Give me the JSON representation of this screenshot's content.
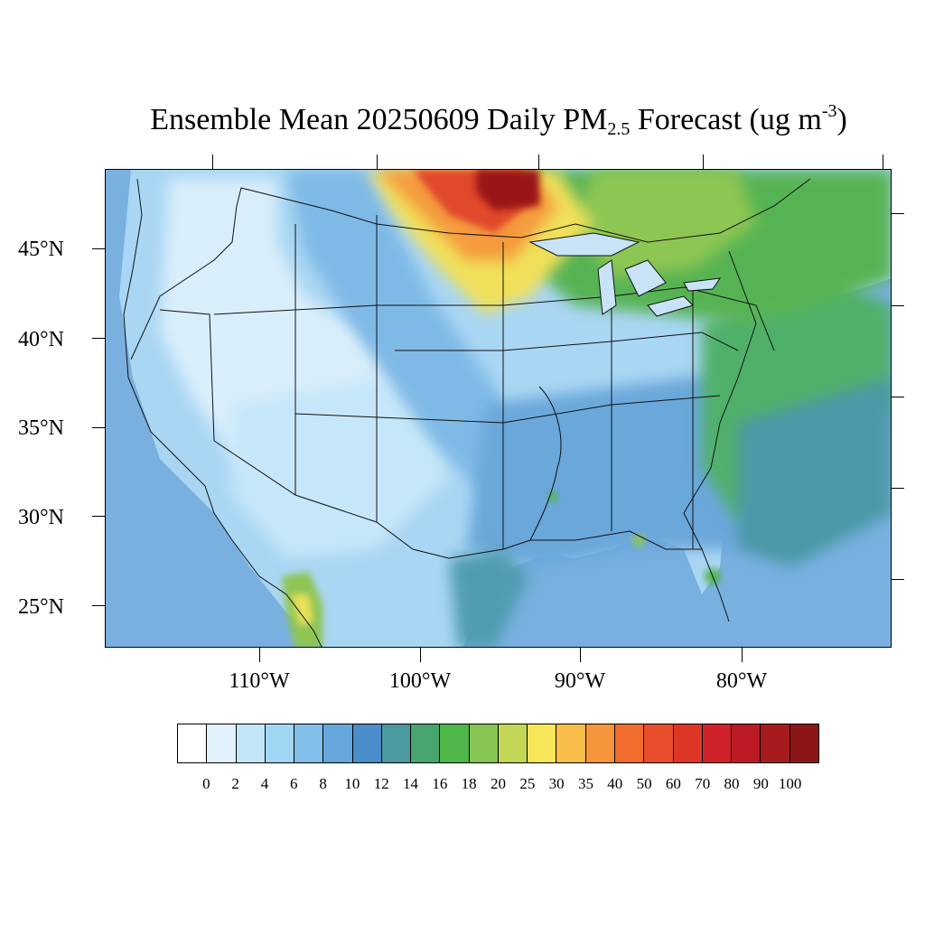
{
  "title": {
    "prefix": "Ensemble Mean 20250609 Daily PM",
    "subscript": "2.5",
    "middle": " Forecast (ug m",
    "superscript": "-3",
    "suffix": ")"
  },
  "lat_labels": [
    "45°N",
    "40°N",
    "35°N",
    "30°N",
    "25°N"
  ],
  "lon_labels": [
    "110°W",
    "100°W",
    "90°W",
    "80°W"
  ],
  "colorbar": {
    "labels": [
      "0",
      "2",
      "4",
      "6",
      "8",
      "10",
      "12",
      "14",
      "16",
      "18",
      "20",
      "25",
      "30",
      "35",
      "40",
      "50",
      "60",
      "70",
      "80",
      "90",
      "100"
    ],
    "colors": [
      "#ffffff",
      "#e1f2fc",
      "#c3e6f8",
      "#a1d6f4",
      "#82bfe8",
      "#65a7dc",
      "#4a8dcb",
      "#4a9aa0",
      "#48a570",
      "#4fb648",
      "#86c551",
      "#c3d657",
      "#f7e65a",
      "#f8be49",
      "#f6953b",
      "#f16b2c",
      "#e84e2b",
      "#de3626",
      "#d0222a",
      "#bb1a24",
      "#a81b1d",
      "#8c1517"
    ]
  },
  "map": {
    "ocean_color": "#7fb6e4",
    "land_base_color": "#a9d6f3"
  }
}
